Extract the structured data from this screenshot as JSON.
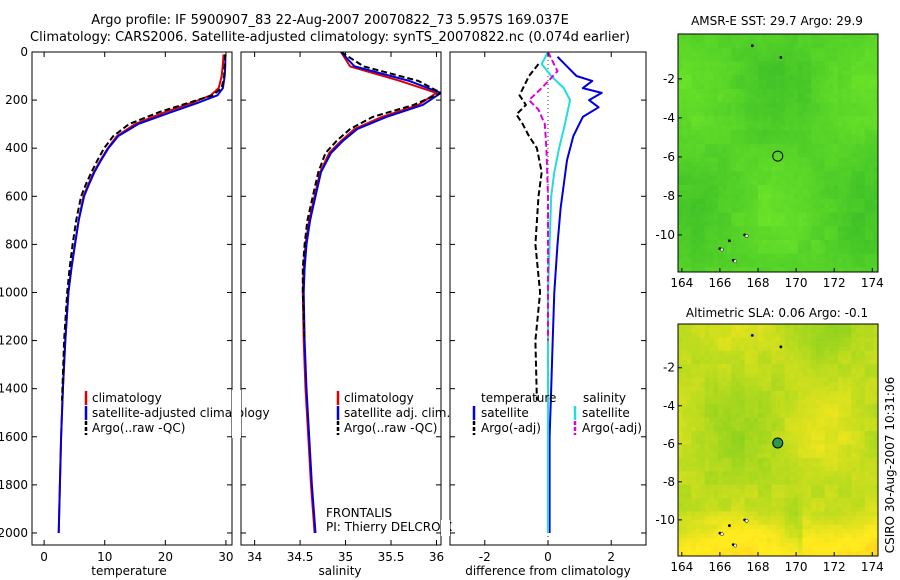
{
  "page": {
    "title_line1": "Argo profile: IF 5900907_83 22-Aug-2007 20070822_73 5.957S 169.037E",
    "title_line2": "Climatology: CARS2006. Satellite-adjusted climatology: synTS_20070822.nc (0.074d earlier)",
    "side_label": "CSIRO 30-Aug-2007 10:31:06",
    "pi_line1": "FRONTALIS",
    "pi_line2": "PI: Thierry DELCROIX",
    "colors": {
      "climatology": "#dd0000",
      "satellite": "#0000dd",
      "argo": "#000000",
      "sal_satellite": "#22dddd",
      "sal_argo": "#dd00dd"
    }
  },
  "chart_data": [
    {
      "type": "line",
      "name": "temperature-panel",
      "xlabel": "temperature",
      "ylabel": "",
      "xlim": [
        -2,
        31
      ],
      "ylim": [
        2050,
        0
      ],
      "xticks": [
        0,
        10,
        20,
        30
      ],
      "yticks": [
        0,
        200,
        400,
        600,
        800,
        1000,
        1200,
        1400,
        1600,
        1800,
        2000
      ],
      "legend": [
        "climatology",
        "satellite-adjusted climatology",
        "Argo(..raw -QC)"
      ],
      "series": [
        {
          "name": "climatology",
          "style": "solid",
          "color": "#dd0000",
          "x": [
            29.6,
            29.5,
            29.3,
            28.8,
            27.5,
            24.5,
            20,
            15,
            12,
            10.5,
            9.3,
            8.2,
            7.3,
            6.5,
            5.7,
            5.1,
            4.5,
            4.0,
            3.5,
            3.1,
            2.8,
            2.6,
            2.4
          ],
          "y": [
            10,
            50,
            100,
            150,
            180,
            210,
            250,
            300,
            350,
            400,
            450,
            500,
            550,
            600,
            700,
            800,
            900,
            1000,
            1200,
            1400,
            1600,
            1800,
            2000
          ]
        },
        {
          "name": "satellite-adjusted climatology",
          "style": "solid",
          "color": "#0000dd",
          "x": [
            29.9,
            29.9,
            29.8,
            29.5,
            28.6,
            25.5,
            21,
            15.5,
            12.2,
            10.6,
            9.4,
            8.3,
            7.4,
            6.6,
            5.7,
            5.1,
            4.5,
            4.0,
            3.5,
            3.1,
            2.8,
            2.6,
            2.4
          ],
          "y": [
            10,
            50,
            100,
            150,
            180,
            210,
            250,
            300,
            350,
            400,
            450,
            500,
            550,
            600,
            700,
            800,
            900,
            1000,
            1200,
            1400,
            1600,
            1800,
            2000
          ]
        },
        {
          "name": "Argo(..raw -QC)",
          "style": "dashed",
          "color": "#000000",
          "x": [
            29.9,
            29.8,
            29.7,
            29.3,
            27.8,
            24,
            19,
            14,
            11.4,
            9.9,
            8.8,
            7.8,
            6.9,
            6.1,
            5.3,
            4.7,
            4.2,
            3.8,
            3.3,
            2.95
          ],
          "y": [
            10,
            50,
            100,
            150,
            180,
            210,
            250,
            300,
            350,
            400,
            450,
            500,
            550,
            600,
            700,
            800,
            900,
            1000,
            1200,
            1450
          ]
        }
      ]
    },
    {
      "type": "line",
      "name": "salinity-panel",
      "xlabel": "salinity",
      "ylabel": "",
      "xlim": [
        33.85,
        36.05
      ],
      "ylim": [
        2050,
        0
      ],
      "xticks": [
        34,
        34.5,
        35,
        35.5,
        36
      ],
      "legend": [
        "climatology",
        "satellite adj. clim.",
        "Argo(..raw -QC)"
      ],
      "series": [
        {
          "name": "climatology",
          "style": "solid",
          "color": "#dd0000",
          "x": [
            34.95,
            35.05,
            35.6,
            36.0,
            35.8,
            35.4,
            35.1,
            34.95,
            34.82,
            34.72,
            34.66,
            34.6,
            34.56,
            34.54,
            34.53,
            34.54,
            34.56,
            34.59,
            34.62,
            34.64,
            34.66
          ],
          "y": [
            0,
            60,
            120,
            170,
            220,
            270,
            320,
            370,
            420,
            500,
            600,
            700,
            800,
            900,
            1000,
            1200,
            1400,
            1600,
            1800,
            1900,
            2000
          ]
        },
        {
          "name": "satellite adj. clim.",
          "style": "solid",
          "color": "#0000dd",
          "x": [
            34.95,
            35.1,
            35.7,
            36.05,
            35.85,
            35.45,
            35.13,
            34.97,
            34.84,
            34.73,
            34.67,
            34.61,
            34.57,
            34.55,
            34.54,
            34.55,
            34.57,
            34.6,
            34.63,
            34.65,
            34.67
          ],
          "y": [
            0,
            60,
            120,
            170,
            220,
            270,
            320,
            370,
            420,
            500,
            600,
            700,
            800,
            900,
            1000,
            1200,
            1400,
            1600,
            1800,
            1900,
            2000
          ]
        },
        {
          "name": "Argo(..raw -QC)",
          "style": "dashed",
          "color": "#000000",
          "x": [
            34.95,
            35.2,
            35.8,
            36.05,
            35.75,
            35.3,
            35.05,
            34.9,
            34.78,
            34.7,
            34.64,
            34.58,
            34.55,
            34.53,
            34.53,
            34.55
          ],
          "y": [
            0,
            60,
            120,
            170,
            220,
            270,
            320,
            370,
            420,
            500,
            600,
            700,
            800,
            900,
            1000,
            1200
          ]
        }
      ]
    },
    {
      "type": "line",
      "name": "difference-panel",
      "xlabel": "difference from climatology",
      "ylabel": "",
      "xlim": [
        -3.1,
        3.1
      ],
      "ylim": [
        2050,
        0
      ],
      "xticks": [
        -2,
        0,
        2
      ],
      "legend_left": {
        "header": "temperature",
        "items": [
          "satellite",
          "Argo(-adj)"
        ]
      },
      "legend_right": {
        "header": "salinity",
        "items": [
          "satellite",
          "Argo(-adj)"
        ]
      },
      "series": [
        {
          "name": "temperature satellite",
          "style": "solid",
          "color": "#0000dd",
          "x": [
            0.3,
            0.6,
            0.9,
            1.4,
            1.1,
            1.7,
            1.3,
            1.6,
            1.1,
            0.8,
            0.6,
            0.5,
            0.4,
            0.3,
            0.2,
            0.15,
            0.1,
            0.05,
            0.05,
            0.05
          ],
          "y": [
            20,
            60,
            100,
            120,
            150,
            170,
            200,
            230,
            270,
            350,
            450,
            550,
            650,
            800,
            1000,
            1200,
            1400,
            1600,
            1800,
            2000
          ]
        },
        {
          "name": "temperature Argo(-adj)",
          "style": "dashed",
          "color": "#000000",
          "x": [
            -0.3,
            -0.6,
            -0.9,
            -0.7,
            -1.0,
            -0.8,
            -0.6,
            -0.35,
            -0.2,
            -0.3,
            -0.4,
            -0.25,
            -0.4,
            -0.35
          ],
          "y": [
            50,
            100,
            180,
            220,
            260,
            300,
            350,
            400,
            500,
            600,
            800,
            1000,
            1200,
            1450
          ]
        },
        {
          "name": "salinity satellite",
          "style": "solid",
          "color": "#22dddd",
          "x": [
            0,
            -0.2,
            0.1,
            0.5,
            0.7,
            0.6,
            0.5,
            0.35,
            0.2,
            0.1,
            0.05,
            0,
            0,
            0,
            0,
            0
          ],
          "y": [
            0,
            50,
            100,
            150,
            200,
            260,
            320,
            400,
            500,
            600,
            800,
            1000,
            1200,
            1400,
            1600,
            2000
          ]
        },
        {
          "name": "salinity Argo(-adj)",
          "style": "dashed",
          "color": "#dd00dd",
          "x": [
            0,
            0.3,
            -0.2,
            -0.6,
            -0.3,
            -0.1,
            -0.05,
            0,
            0
          ],
          "y": [
            0,
            80,
            150,
            200,
            240,
            300,
            400,
            600,
            1200
          ]
        }
      ]
    },
    {
      "type": "heatmap",
      "name": "sst-map",
      "title": "AMSR-E SST: 29.7  Argo: 29.9",
      "xlim": [
        163.8,
        174.3
      ],
      "ylim": [
        -11.9,
        0.3
      ],
      "xticks": [
        164,
        166,
        168,
        170,
        172,
        174
      ],
      "yticks": [
        -2,
        -4,
        -6,
        -8,
        -10
      ],
      "float_position": [
        169.037,
        -5.957
      ],
      "palette": "green"
    },
    {
      "type": "heatmap",
      "name": "sla-map",
      "title": "Altimetric SLA: 0.06  Argo: -0.1",
      "xlim": [
        163.8,
        174.3
      ],
      "ylim": [
        -11.9,
        0.3
      ],
      "xticks": [
        164,
        166,
        168,
        170,
        172,
        174
      ],
      "yticks": [
        -2,
        -4,
        -6,
        -8,
        -10
      ],
      "float_position": [
        169.037,
        -5.957
      ],
      "palette": "yellow-green"
    }
  ]
}
